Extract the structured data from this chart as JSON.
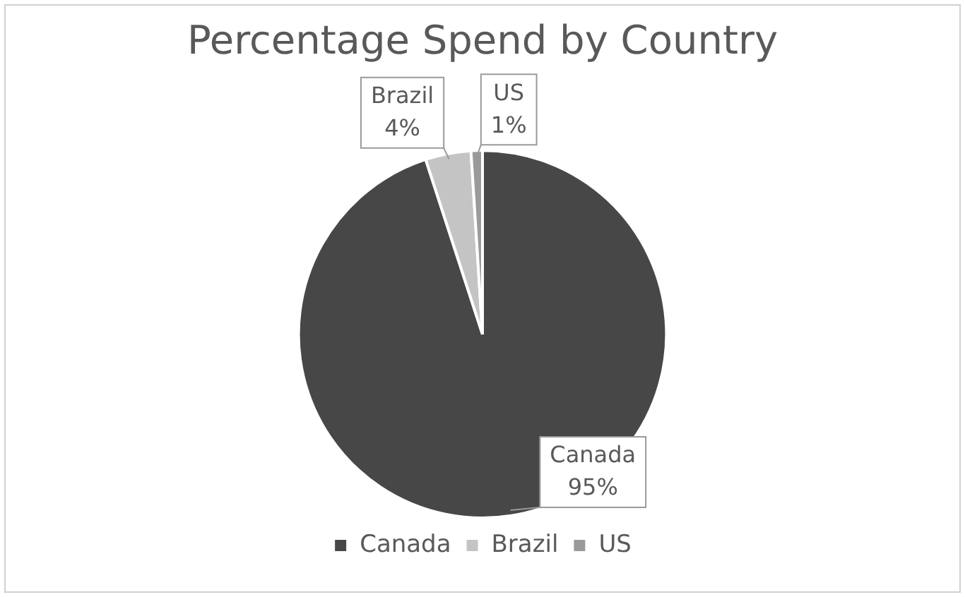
{
  "chart_data": {
    "type": "pie",
    "title": "Percentage Spend by Country",
    "categories": [
      "Canada",
      "Brazil",
      "US"
    ],
    "values": [
      95,
      4,
      1
    ],
    "value_labels": [
      "95%",
      "4%",
      "1%"
    ],
    "colors": [
      "#474747",
      "#c4c4c4",
      "#9a9a9a"
    ],
    "legend": "bottom"
  }
}
